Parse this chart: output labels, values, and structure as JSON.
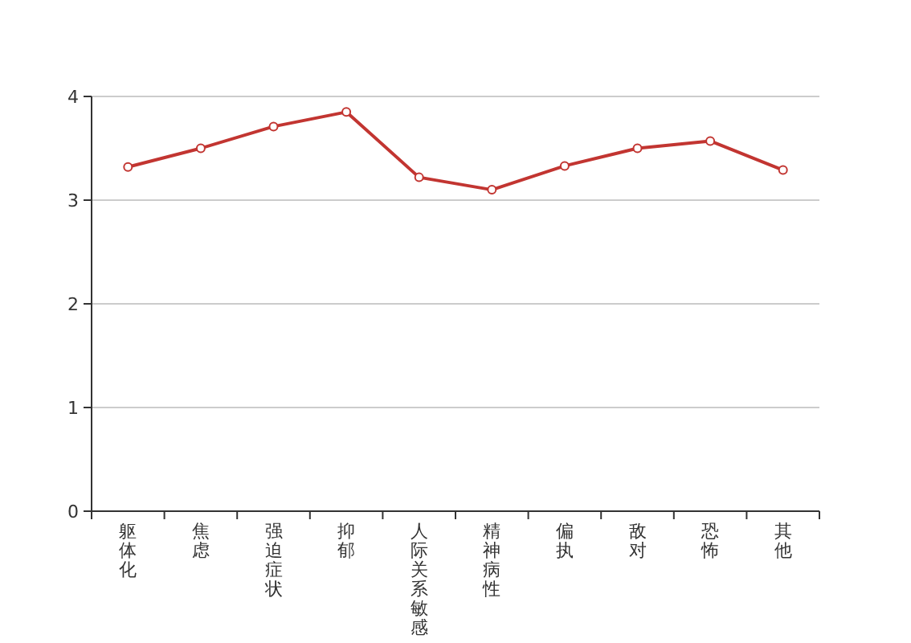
{
  "chart_data": {
    "type": "line",
    "categories": [
      "躯体化",
      "焦虑",
      "强迫症状",
      "抑郁",
      "人际关系敏感",
      "精神病性",
      "偏执",
      "敌对",
      "恐怖",
      "其他"
    ],
    "series": [
      {
        "color": "#c23531",
        "values": [
          3.32,
          3.5,
          3.71,
          3.85,
          3.22,
          3.1,
          3.33,
          3.5,
          3.57,
          3.29
        ]
      }
    ],
    "ylim": [
      0,
      4
    ],
    "yticks": [
      0,
      1,
      2,
      3,
      4
    ],
    "grid": "y",
    "marker": "circle",
    "line_style": "solid"
  }
}
